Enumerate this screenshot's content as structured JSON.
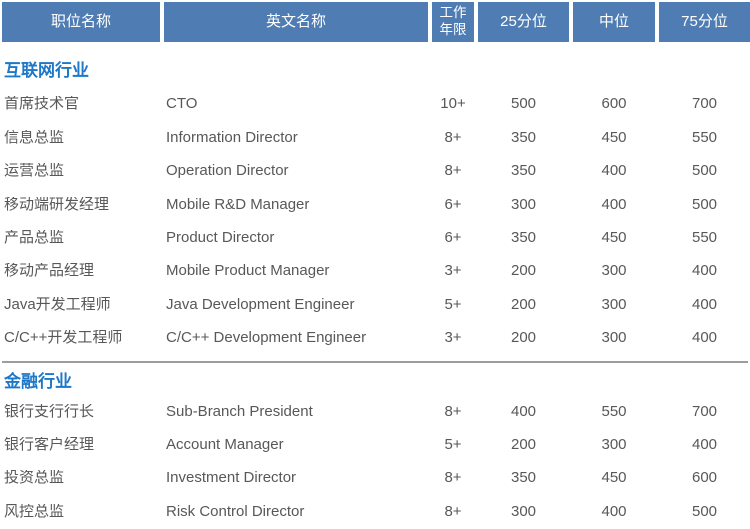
{
  "chart_data": {
    "type": "table",
    "columns": [
      "职位名称",
      "英文名称",
      "工作年限",
      "25分位",
      "中位",
      "75分位"
    ],
    "sections": [
      {
        "title": "互联网行业",
        "rows": [
          [
            "首席技术官",
            "CTO",
            "10+",
            "500",
            "600",
            "700"
          ],
          [
            "信息总监",
            "Information Director",
            "8+",
            "350",
            "450",
            "550"
          ],
          [
            "运营总监",
            "Operation Director",
            "8+",
            "350",
            "400",
            "500"
          ],
          [
            "移动端研发经理",
            "Mobile R&D Manager",
            "6+",
            "300",
            "400",
            "500"
          ],
          [
            "产品总监",
            "Product Director",
            "6+",
            "350",
            "450",
            "550"
          ],
          [
            "移动产品经理",
            "Mobile Product Manager",
            "3+",
            "200",
            "300",
            "400"
          ],
          [
            "Java开发工程师",
            "Java Development Engineer",
            "5+",
            "200",
            "300",
            "400"
          ],
          [
            "C/C++开发工程师",
            "C/C++ Development Engineer",
            "3+",
            "200",
            "300",
            "400"
          ]
        ]
      },
      {
        "title": "金融行业",
        "rows": [
          [
            "银行支行行长",
            "Sub-Branch President",
            "8+",
            "400",
            "550",
            "700"
          ],
          [
            "银行客户经理",
            "Account Manager",
            "5+",
            "200",
            "300",
            "400"
          ],
          [
            "投资总监",
            "Investment Director",
            "8+",
            "350",
            "450",
            "600"
          ],
          [
            "风控总监",
            "Risk Control Director",
            "8+",
            "300",
            "400",
            "500"
          ]
        ]
      }
    ]
  },
  "colors": {
    "header_bg": "#4f7db3",
    "header_text": "#ffffff",
    "section_title": "#1e78c8",
    "body_text": "#595757",
    "divider": "#9d9d9d"
  }
}
